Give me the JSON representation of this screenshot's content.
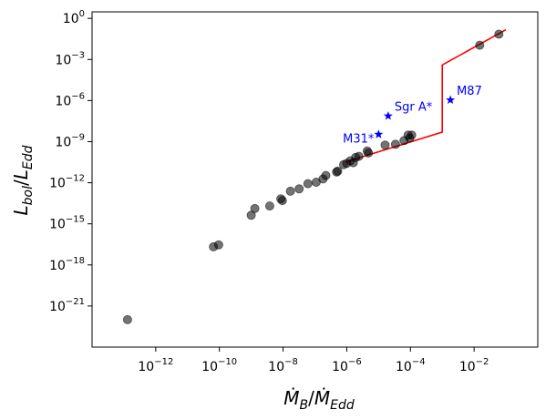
{
  "chart_data": {
    "type": "scatter",
    "title": "",
    "xlabel": {
      "base": "Ṁ",
      "sub": "B",
      "sep": "/",
      "base2": "Ṁ",
      "sub2": "Edd"
    },
    "ylabel": {
      "base": "L",
      "sub": "bol",
      "sep": "/",
      "base2": "L",
      "sub2": "Edd"
    },
    "x_scale": "log",
    "y_scale": "log",
    "xlim": [
      1e-14,
      1.0
    ],
    "ylim": [
      1e-24,
      3.0
    ],
    "grid": false,
    "x_ticks": [
      {
        "value": 1e-12,
        "base": "10",
        "exp": "−12"
      },
      {
        "value": 1e-10,
        "base": "10",
        "exp": "−10"
      },
      {
        "value": 1e-08,
        "base": "10",
        "exp": "−8"
      },
      {
        "value": 1e-06,
        "base": "10",
        "exp": "−6"
      },
      {
        "value": 0.0001,
        "base": "10",
        "exp": "−4"
      },
      {
        "value": 0.01,
        "base": "10",
        "exp": "−2"
      }
    ],
    "y_ticks": [
      {
        "value": 1.0,
        "base": "10",
        "exp": "0"
      },
      {
        "value": 0.001,
        "base": "10",
        "exp": "−3"
      },
      {
        "value": 1e-06,
        "base": "10",
        "exp": "−6"
      },
      {
        "value": 1e-09,
        "base": "10",
        "exp": "−9"
      },
      {
        "value": 1e-12,
        "base": "10",
        "exp": "−12"
      },
      {
        "value": 1e-15,
        "base": "10",
        "exp": "−15"
      },
      {
        "value": 1e-18,
        "base": "10",
        "exp": "−18"
      },
      {
        "value": 1e-21,
        "base": "10",
        "exp": "−21"
      }
    ],
    "scatter_series": {
      "color": "#000000",
      "opacity": 0.55,
      "points": [
        [
          1.3e-13,
          1e-22
        ],
        [
          6.5e-11,
          2.1e-17
        ],
        [
          9.5e-11,
          2.9e-17
        ],
        [
          1e-09,
          4.2e-15
        ],
        [
          1.3e-09,
          1.3e-14
        ],
        [
          3.8e-09,
          2e-14
        ],
        [
          8.5e-09,
          6.6e-14
        ],
        [
          9.5e-09,
          5e-14
        ],
        [
          1.7e-08,
          2.4e-13
        ],
        [
          3.2e-08,
          3.6e-13
        ],
        [
          6e-08,
          8.5e-13
        ],
        [
          1.1e-07,
          1.1e-12
        ],
        [
          1.8e-07,
          1.9e-12
        ],
        [
          2.2e-07,
          3.4e-12
        ],
        [
          4.8e-07,
          6.1e-12
        ],
        [
          5.2e-07,
          7e-12
        ],
        [
          8e-07,
          2.1e-11
        ],
        [
          1e-06,
          2.6e-11
        ],
        [
          1.3e-06,
          4e-11
        ],
        [
          1.6e-06,
          2.9e-11
        ],
        [
          1.9e-06,
          7e-11
        ],
        [
          2.4e-06,
          8.5e-11
        ],
        [
          4.4e-06,
          2.1e-10
        ],
        [
          4.8e-06,
          1.5e-10
        ],
        [
          1.6e-05,
          5.6e-10
        ],
        [
          3.4e-05,
          6.4e-10
        ],
        [
          6.3e-05,
          1.2e-09
        ],
        [
          8.5e-05,
          3e-09
        ],
        [
          9.5e-05,
          1.8e-09
        ],
        [
          0.00011,
          3e-09
        ],
        [
          0.015,
          0.011
        ],
        [
          0.06,
          0.07
        ]
      ]
    },
    "star_series": {
      "color": "#0000ff",
      "points": [
        {
          "x": 1e-05,
          "y": 3.4e-09,
          "label": "M31*",
          "label_pos": "left"
        },
        {
          "x": 2e-05,
          "y": 7.5e-08,
          "label": "Sgr A*",
          "label_pos": "upper-right"
        },
        {
          "x": 0.0018,
          "y": 1.1e-06,
          "label": "M87",
          "label_pos": "upper-right"
        }
      ]
    },
    "model_line": {
      "color": "#ff0000",
      "points": [
        [
          1e-06,
          3.5e-11
        ],
        [
          0.001,
          5e-09
        ],
        [
          0.001,
          0.0004
        ],
        [
          0.1,
          0.15
        ]
      ]
    }
  }
}
